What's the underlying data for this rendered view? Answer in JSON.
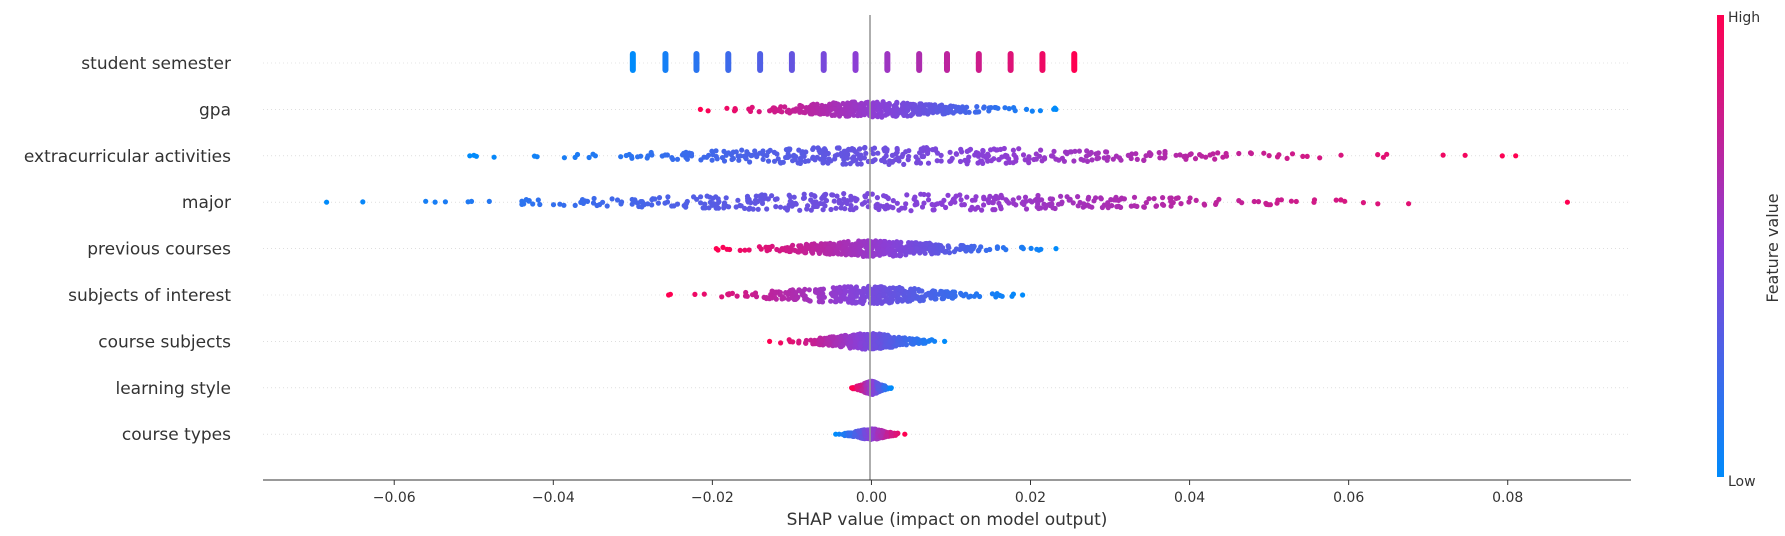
{
  "chart_data": {
    "type": "scatter",
    "subtype": "shap-beeswarm",
    "title": "",
    "xlabel": "SHAP value (impact on model output)",
    "xlim": [
      -0.0765,
      0.0955
    ],
    "xticks": [
      -0.06,
      -0.04,
      -0.02,
      0.0,
      0.02,
      0.04,
      0.06,
      0.08
    ],
    "xtick_labels": [
      "−0.06",
      "−0.04",
      "−0.02",
      "0.00",
      "0.02",
      "0.04",
      "0.06",
      "0.08"
    ],
    "grid": false,
    "features": [
      {
        "name": "student semester",
        "min": -0.03,
        "max": 0.0255,
        "spread": 0.55,
        "stripes": [
          -0.03,
          -0.0259,
          -0.022,
          -0.018,
          -0.014,
          -0.01,
          -0.006,
          -0.002,
          0.002,
          0.006,
          0.0095,
          0.0135,
          0.0175,
          0.0215,
          0.0255
        ],
        "color_trend": "increasing"
      },
      {
        "name": "gpa",
        "min": -0.0215,
        "max": 0.0232,
        "spread": 0.45,
        "color_trend": "decreasing"
      },
      {
        "name": "extracurricular activities",
        "min": -0.0505,
        "max": 0.081,
        "spread": 0.5,
        "color_trend": "increasing"
      },
      {
        "name": "major",
        "min": -0.0685,
        "max": 0.0875,
        "spread": 0.5,
        "color_trend": "increasing"
      },
      {
        "name": "previous courses",
        "min": -0.0195,
        "max": 0.0232,
        "spread": 0.45,
        "color_trend": "decreasing"
      },
      {
        "name": "subjects of interest",
        "min": -0.0255,
        "max": 0.019,
        "spread": 0.5,
        "color_trend": "decreasing"
      },
      {
        "name": "course subjects",
        "min": -0.0128,
        "max": 0.0092,
        "spread": 0.45,
        "color_trend": "decreasing"
      },
      {
        "name": "learning style",
        "min": -0.0025,
        "max": 0.0025,
        "spread": 0.38,
        "color_trend": "decreasing"
      },
      {
        "name": "course types",
        "min": -0.0045,
        "max": 0.0042,
        "spread": 0.3,
        "color_trend": "increasing"
      }
    ],
    "colorbar": {
      "label": "Feature value",
      "high_label": "High",
      "low_label": "Low",
      "low_color": "#008bfb",
      "high_color": "#ff0051"
    }
  }
}
